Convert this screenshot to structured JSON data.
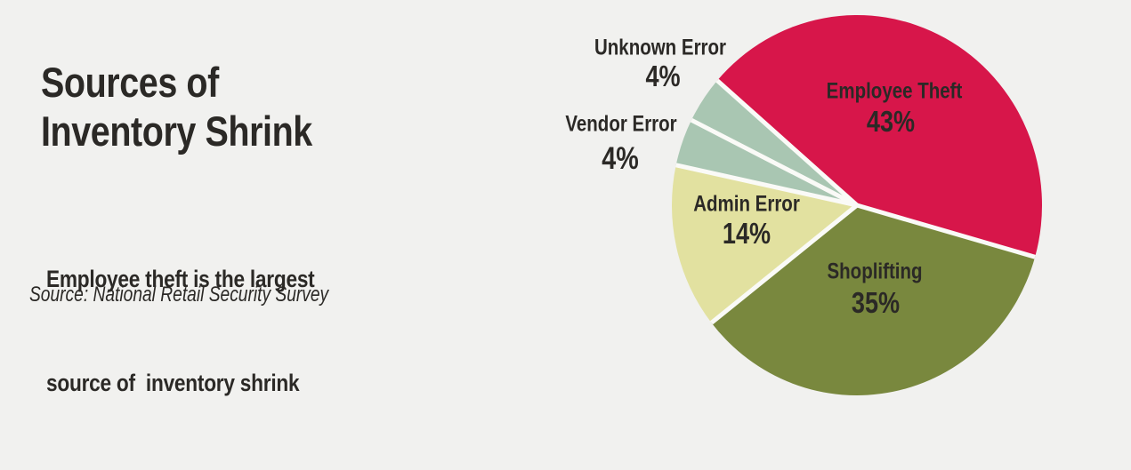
{
  "page": {
    "background_color": "#f1f1ef",
    "text_color": "#2b2926"
  },
  "left_panel": {
    "title_line1": "Sources of",
    "title_line2": "Inventory Shrink",
    "subtitle_line1": "Employee theft is the largest",
    "subtitle_line2": "source of  inventory shrink",
    "source": "Source: National Retail Security Survey"
  },
  "chart_data": {
    "type": "pie",
    "title": "Sources of Inventory Shrink",
    "legend_position": "none",
    "start_angle_clockwise_from_12": -49,
    "direction": "clockwise",
    "separator_color": "#fafaf7",
    "slices": [
      {
        "label": "Employee Theft",
        "value": 43,
        "pct_label": "43%",
        "color": "#d7164a",
        "label_placement": "inside"
      },
      {
        "label": "Shoplifting",
        "value": 35,
        "pct_label": "35%",
        "color": "#79883e",
        "label_placement": "inside"
      },
      {
        "label": "Admin Error",
        "value": 14,
        "pct_label": "14%",
        "color": "#e2e1a0",
        "label_placement": "inside"
      },
      {
        "label": "Vendor Error",
        "value": 4,
        "pct_label": "4%",
        "color": "#a9c6b2",
        "label_placement": "outside"
      },
      {
        "label": "Unknown Error",
        "value": 4,
        "pct_label": "4%",
        "color": "#a9c6b2",
        "label_placement": "outside"
      }
    ]
  }
}
